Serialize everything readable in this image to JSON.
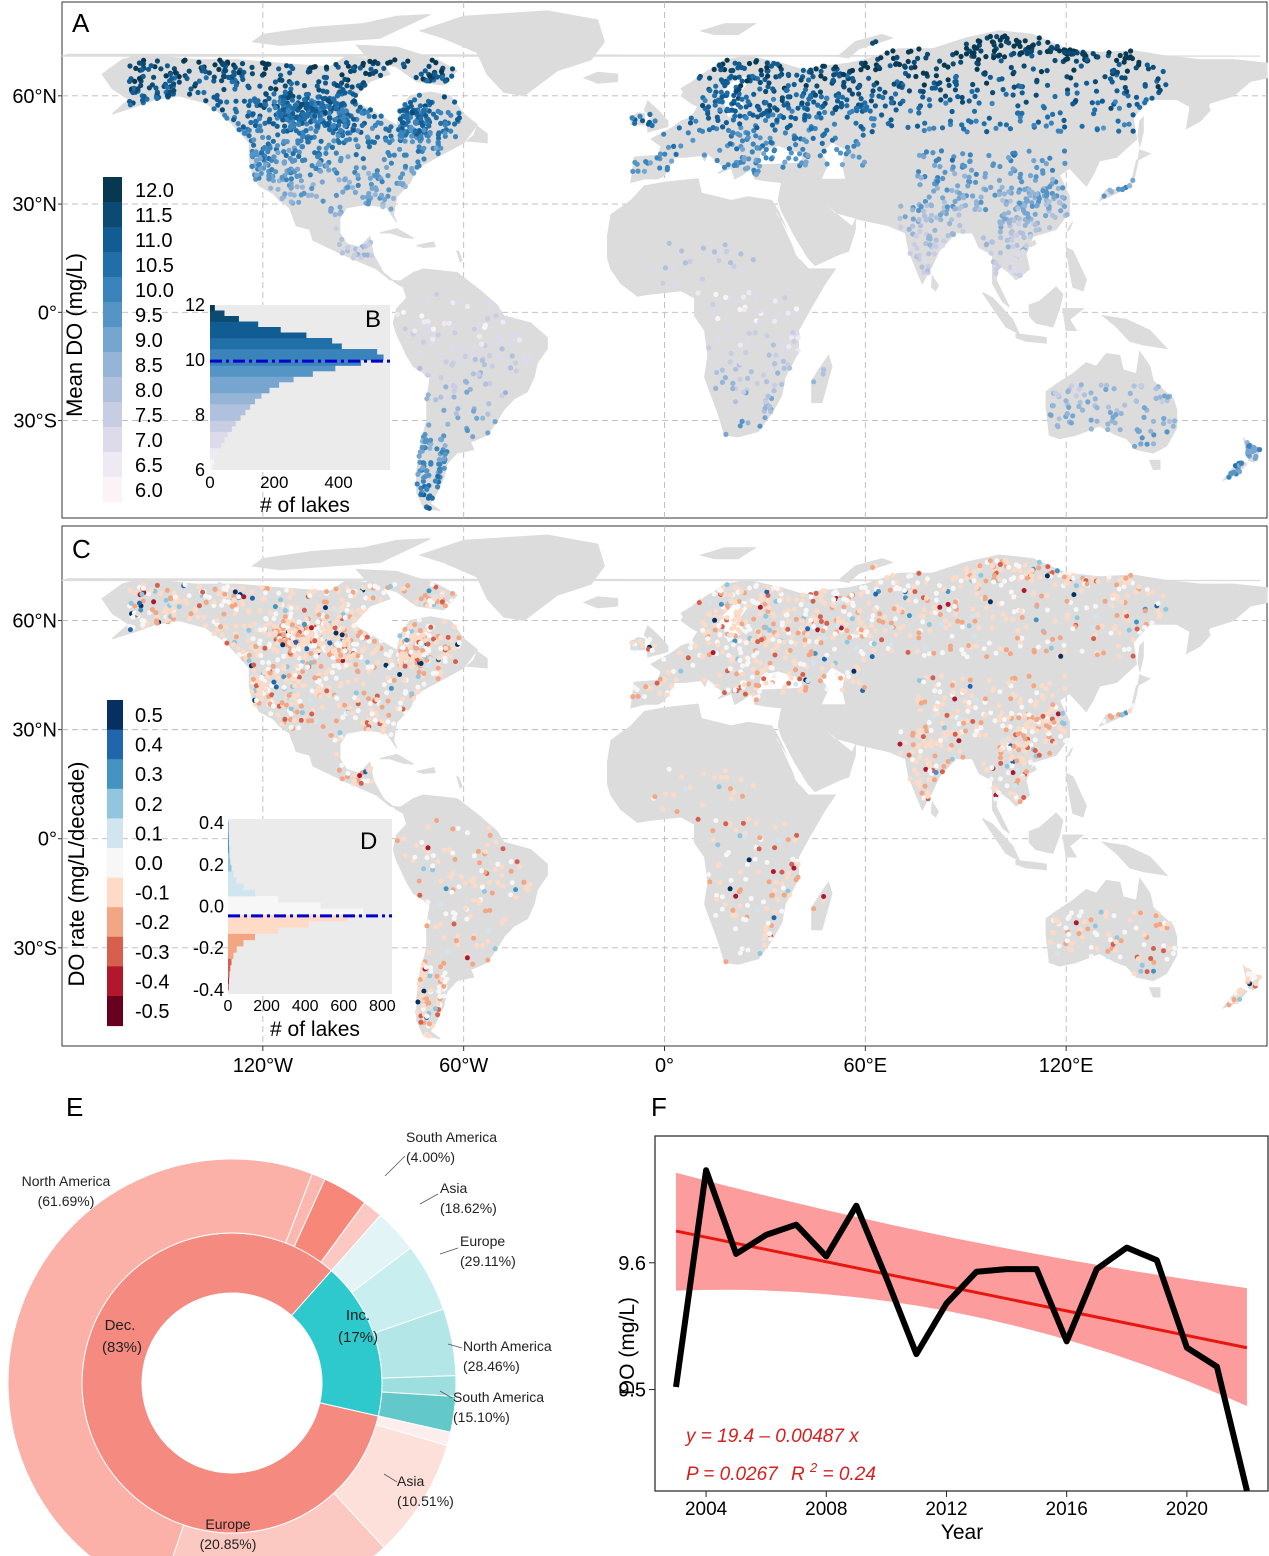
{
  "colors": {
    "land": "#dcdcdc",
    "ocean": "#ffffff",
    "do_ramp": [
      "#fcf3f7",
      "#eeeaf4",
      "#dcdaeb",
      "#c8cde4",
      "#b0c1de",
      "#95b5d6",
      "#76a6cf",
      "#5595c6",
      "#3a84bb",
      "#216fa8",
      "#115c93",
      "#0b4a73",
      "#08384f"
    ],
    "rate_ramp": [
      "#67001f",
      "#b2182b",
      "#d6604d",
      "#f4a582",
      "#fddbc7",
      "#f7f7f7",
      "#d1e5f0",
      "#92c5de",
      "#4393c3",
      "#2166ac",
      "#053061"
    ],
    "mean_line": "#0000cc",
    "pie_dec": "#f48a80",
    "pie_inc": "#2ec9cc",
    "trend_line": "#e8160f",
    "ci_band": "#fb8b8b",
    "series_line": "#000000"
  },
  "map_axes": {
    "lat_labels": [
      "60°N",
      "30°N",
      "0°",
      "30°S"
    ],
    "lat_values": [
      60,
      30,
      0,
      -30
    ],
    "lon_labels": [
      "120°W",
      "60°W",
      "0°",
      "60°E",
      "120°E"
    ],
    "lon_values": [
      -120,
      -60,
      0,
      60,
      120
    ]
  },
  "panel_a": {
    "letter": "A",
    "legend_title": "Mean DO (mg/L)",
    "legend_ticks": [
      "12.0",
      "11.5",
      "11.0",
      "10.5",
      "10.0",
      "9.5",
      "9.0",
      "8.5",
      "8.0",
      "7.5",
      "7.0",
      "6.5",
      "6.0"
    ]
  },
  "panel_b": {
    "letter": "B",
    "chart_data": {
      "type": "bar",
      "orientation": "horizontal histogram",
      "xlabel": "# of lakes",
      "ylabel": "",
      "xlim": [
        0,
        560
      ],
      "ylim": [
        6,
        12
      ],
      "x_ticks": [
        "0",
        "200",
        "400"
      ],
      "y_ticks": [
        "6",
        "8",
        "10",
        "12"
      ],
      "mean_value": 9.96,
      "bins_y": [
        6.0,
        6.2,
        6.4,
        6.6,
        6.8,
        7.0,
        7.2,
        7.4,
        7.6,
        7.8,
        8.0,
        8.2,
        8.4,
        8.6,
        8.8,
        9.0,
        9.2,
        9.4,
        9.6,
        9.8,
        10.0,
        10.2,
        10.4,
        10.6,
        10.8,
        11.0,
        11.2,
        11.4,
        11.6,
        11.8
      ],
      "counts": [
        8,
        12,
        18,
        25,
        35,
        45,
        55,
        68,
        80,
        95,
        110,
        125,
        140,
        160,
        185,
        215,
        260,
        320,
        390,
        470,
        540,
        520,
        410,
        380,
        300,
        220,
        150,
        90,
        45,
        15
      ]
    }
  },
  "panel_c": {
    "letter": "C",
    "legend_title": "DO rate (mg/L/decade)",
    "legend_ticks": [
      "0.5",
      "0.4",
      "0.3",
      "0.2",
      "0.1",
      "0.0",
      "-0.1",
      "-0.2",
      "-0.3",
      "-0.4",
      "-0.5"
    ]
  },
  "panel_d": {
    "letter": "D",
    "chart_data": {
      "type": "bar",
      "orientation": "horizontal histogram",
      "xlabel": "# of lakes",
      "ylabel": "",
      "xlim": [
        0,
        850
      ],
      "ylim": [
        -0.42,
        0.42
      ],
      "x_ticks": [
        "0",
        "200",
        "400",
        "600",
        "800"
      ],
      "y_ticks": [
        "-0.4",
        "-0.2",
        "0.0",
        "0.2",
        "0.4"
      ],
      "mean_value": -0.045,
      "bins_y": [
        -0.4,
        -0.37,
        -0.34,
        -0.31,
        -0.28,
        -0.25,
        -0.22,
        -0.19,
        -0.16,
        -0.13,
        -0.1,
        -0.07,
        -0.04,
        -0.01,
        0.02,
        0.05,
        0.08,
        0.11,
        0.14,
        0.17,
        0.2,
        0.23,
        0.26,
        0.29,
        0.32,
        0.35,
        0.38
      ],
      "counts": [
        3,
        5,
        8,
        12,
        18,
        28,
        45,
        80,
        140,
        260,
        420,
        620,
        700,
        480,
        260,
        140,
        80,
        45,
        28,
        18,
        12,
        8,
        6,
        5,
        4,
        3,
        2
      ]
    }
  },
  "panel_e": {
    "letter": "E",
    "chart_data": {
      "type": "pie",
      "style": "two-level donut",
      "inner": [
        {
          "name": "Dec.",
          "label": "Dec.",
          "pct_label": "(83%)",
          "value": 83
        },
        {
          "name": "Inc.",
          "label": "Inc.",
          "pct_label": "(17%)",
          "value": 17
        }
      ],
      "outer_dec": [
        {
          "name": "Europe",
          "pct_label": "(20.85%)",
          "value": 20.85
        },
        {
          "name": "North America",
          "pct_label": "(61.69%)",
          "value": 61.69
        },
        {
          "name": "other",
          "value": 1.2
        },
        {
          "name": "South America",
          "pct_label": "(4.00%)",
          "value": 4.0
        },
        {
          "name": "other",
          "value": 1.75
        },
        {
          "name": "Asia",
          "pct_label": "(10.51%)",
          "value": 10.51
        }
      ],
      "outer_inc": [
        {
          "name": "Asia",
          "pct_label": "(18.62%)",
          "value": 18.62
        },
        {
          "name": "Europe",
          "pct_label": "(29.11%)",
          "value": 29.11
        },
        {
          "name": "North America",
          "pct_label": "(28.46%)",
          "value": 28.46
        },
        {
          "name": "other",
          "value": 8.71
        },
        {
          "name": "South America",
          "pct_label": "(15.10%)",
          "value": 15.1
        }
      ],
      "outer_labels": [
        {
          "name": "South America",
          "pct": "(4.00%)"
        },
        {
          "name": "Asia",
          "pct": "(18.62%)"
        },
        {
          "name": "Europe",
          "pct": "(29.11%)"
        },
        {
          "name": "North America",
          "pct": "(28.46%)"
        },
        {
          "name": "South America",
          "pct": "(15.10%)"
        },
        {
          "name": "Asia",
          "pct": "(10.51%)"
        },
        {
          "name": "Europe",
          "pct": "(20.85%)"
        },
        {
          "name": "North America",
          "pct": "(61.69%)"
        }
      ]
    }
  },
  "panel_f": {
    "letter": "F",
    "chart_data": {
      "type": "line",
      "xlabel": "Year",
      "ylabel": "DO (mg/L)",
      "xlim": [
        2002.3,
        2022.7
      ],
      "ylim": [
        9.42,
        9.7
      ],
      "x_ticks": [
        2004,
        2008,
        2012,
        2016,
        2020
      ],
      "x_tick_labels": [
        "2004",
        "2008",
        "2012",
        "2016",
        "2020"
      ],
      "y_ticks": [
        9.5,
        9.6
      ],
      "y_tick_labels": [
        "9.5",
        "9.6"
      ],
      "x": [
        2003,
        2004,
        2005,
        2006,
        2007,
        2008,
        2009,
        2010,
        2011,
        2012,
        2013,
        2014,
        2015,
        2016,
        2017,
        2018,
        2019,
        2020,
        2021,
        2022
      ],
      "series": [
        {
          "name": "",
          "values": [
            9.502,
            9.673,
            9.607,
            9.622,
            9.63,
            9.605,
            9.645,
            9.588,
            9.528,
            9.568,
            9.593,
            9.595,
            9.595,
            9.538,
            9.595,
            9.612,
            9.602,
            9.533,
            9.518,
            9.42
          ]
        }
      ],
      "trend": {
        "intercept": 19.4,
        "slope": -0.00487,
        "y_start": 9.625,
        "y_end": 9.533
      },
      "ci_band": {
        "x": [
          2003,
          2022
        ],
        "lower": [
          9.578,
          9.487
        ],
        "upper": [
          9.671,
          9.58
        ]
      },
      "equation": "y = 19.4 – 0.00487 x",
      "stats": "P = 0.0267  R² = 0.24",
      "stats_p": "P = 0.0267",
      "stats_r": "R",
      "stats_sup": "2",
      "stats_r_val": " = 0.24"
    }
  }
}
